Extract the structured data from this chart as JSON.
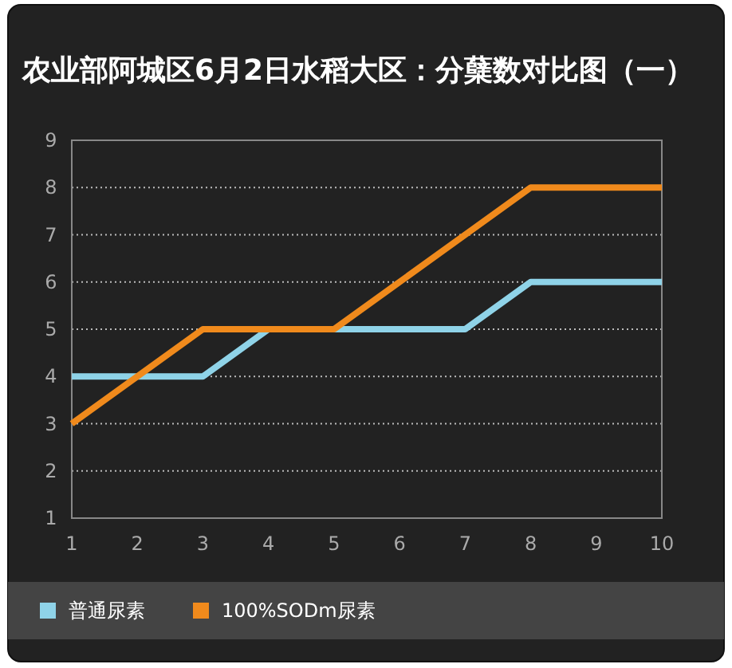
{
  "chart_data": {
    "type": "line",
    "title": "农业部阿城区6月2日水稻大区：分蘖数对比图（一）",
    "x": [
      1,
      2,
      3,
      4,
      5,
      6,
      7,
      8,
      9,
      10
    ],
    "series": [
      {
        "name": "普通尿素",
        "color": "#8fd3e8",
        "values": [
          4,
          4,
          4,
          5,
          5,
          5,
          5,
          6,
          6,
          6
        ]
      },
      {
        "name": "100%SODm尿素",
        "color": "#f08a1c",
        "values": [
          3,
          4,
          5,
          5,
          5,
          6,
          7,
          8,
          8,
          8
        ]
      }
    ],
    "xlim": [
      1,
      10
    ],
    "xticks": [
      1,
      2,
      3,
      4,
      5,
      6,
      7,
      8,
      9,
      10
    ],
    "ylim": [
      1,
      9
    ],
    "yticks": [
      1,
      2,
      3,
      4,
      5,
      6,
      7,
      8,
      9
    ],
    "grid": "y",
    "legend": "bottom",
    "marker": "none",
    "line_style": "solid"
  }
}
